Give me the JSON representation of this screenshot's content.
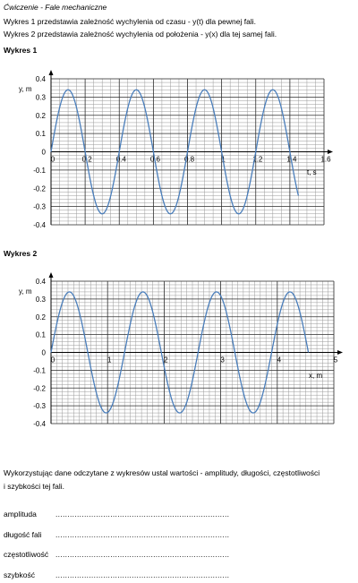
{
  "document": {
    "title": "Ćwiczenie - Fale mechaniczne",
    "intro_line1": "Wykres 1 przedstawia zależność wychylenia od czasu - y(t) dla pewnej fali.",
    "intro_line2": "Wykres 2 przedstawia zależność wychylenia od położenia - y(x) dla tej samej fali.",
    "chart1_heading": "Wykres 1",
    "chart2_heading": "Wykres 2",
    "question_line1": "Wykorzystując dane odczytane z wykresów ustal wartości - amplitudy, długości, częstotliwości",
    "question_line2": "i szybkości tej fali.",
    "fields": [
      {
        "label": "amplituda",
        "dots": "....................................................................................................."
      },
      {
        "label": "długość fali",
        "dots": "....................................................................................................."
      },
      {
        "label": "częstotliwość",
        "dots": "....................................................................................................."
      },
      {
        "label": "szybkość",
        "dots": "....................................................................................................."
      }
    ]
  },
  "chart_data": [
    {
      "type": "line",
      "xlabel": "t, s",
      "ylabel": "y, m",
      "xlim": [
        0,
        1.6
      ],
      "ylim": [
        -0.4,
        0.4
      ],
      "x_ticks": [
        "0",
        "0.2",
        "0.4",
        "0.6",
        "0.8",
        "1",
        "1.2",
        "1.4",
        "1.6"
      ],
      "y_ticks": [
        "0.4",
        "0.3",
        "0.2",
        "0.1",
        "0",
        "-0.1",
        "-0.2",
        "-0.3",
        "-0.4"
      ],
      "grid": true,
      "series": [
        {
          "function": "0.34*sin(2*pi*t/0.4)",
          "amplitude": 0.34,
          "period": 0.4,
          "x_start": 0,
          "x_end": 1.45,
          "color": "#4a7ebb"
        }
      ]
    },
    {
      "type": "line",
      "xlabel": "x, m",
      "ylabel": "y, m",
      "xlim": [
        0,
        5
      ],
      "ylim": [
        -0.4,
        0.4
      ],
      "x_ticks": [
        "0",
        "1",
        "2",
        "3",
        "4",
        "5"
      ],
      "y_ticks": [
        "0.4",
        "0.3",
        "0.2",
        "0.1",
        "0",
        "-0.1",
        "-0.2",
        "-0.3",
        "-0.4"
      ],
      "grid": true,
      "series": [
        {
          "function": "0.34*sin(2*pi*x/1.3)",
          "amplitude": 0.34,
          "period": 1.3,
          "x_start": 0,
          "x_end": 4.55,
          "color": "#4a7ebb"
        }
      ]
    }
  ]
}
